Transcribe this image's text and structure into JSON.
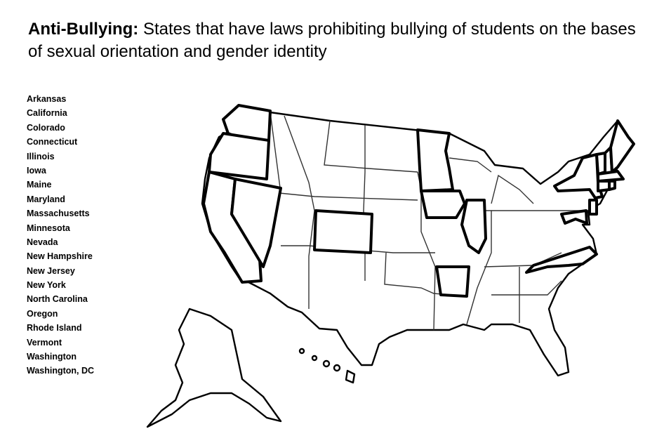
{
  "title": {
    "lead": "Anti-Bullying:",
    "rest": "States that have laws prohibiting bullying of students on the bases of sexual orientation and gender identity"
  },
  "legend": [
    "Arkansas",
    "California",
    "Colorado",
    "Connecticut",
    "Illinois",
    "Iowa",
    "Maine",
    "Maryland",
    "Massachusetts",
    "Minnesota",
    "Nevada",
    "New Hampshire",
    "New Jersey",
    "New York",
    "North Carolina",
    "Oregon",
    "Rhode Island",
    "Vermont",
    "Washington",
    "Washington, DC"
  ],
  "colors": {
    "background": "#ffffff",
    "ink": "#000000"
  }
}
